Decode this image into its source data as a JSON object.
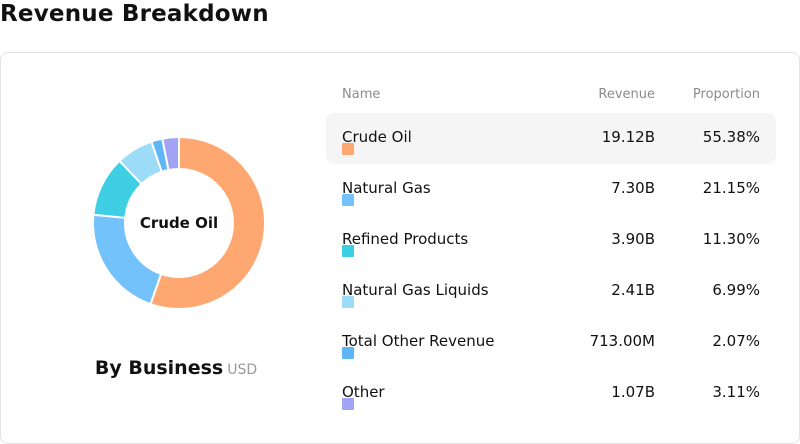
{
  "page": {
    "title": "Revenue Breakdown"
  },
  "chart_data": {
    "type": "pie",
    "title": "Revenue Breakdown",
    "center_label": "Crude Oil",
    "subtitle": "By Business",
    "unit": "USD",
    "columns": [
      "Name",
      "Revenue",
      "Proportion"
    ],
    "selected_index": 0,
    "categories": [
      "Crude Oil",
      "Natural Gas",
      "Refined Products",
      "Natural Gas Liquids",
      "Total Other Revenue",
      "Other"
    ],
    "revenue": [
      "19.12B",
      "7.30B",
      "3.90B",
      "2.41B",
      "713.00M",
      "1.07B"
    ],
    "values": [
      55.38,
      21.15,
      11.3,
      6.99,
      2.07,
      3.11
    ],
    "proportion": [
      "55.38%",
      "21.15%",
      "11.30%",
      "6.99%",
      "2.07%",
      "3.11%"
    ],
    "colors": [
      "#FFA770",
      "#74C2FB",
      "#3ECFE4",
      "#9CDCF8",
      "#5FB6F6",
      "#A3A3F5"
    ]
  }
}
